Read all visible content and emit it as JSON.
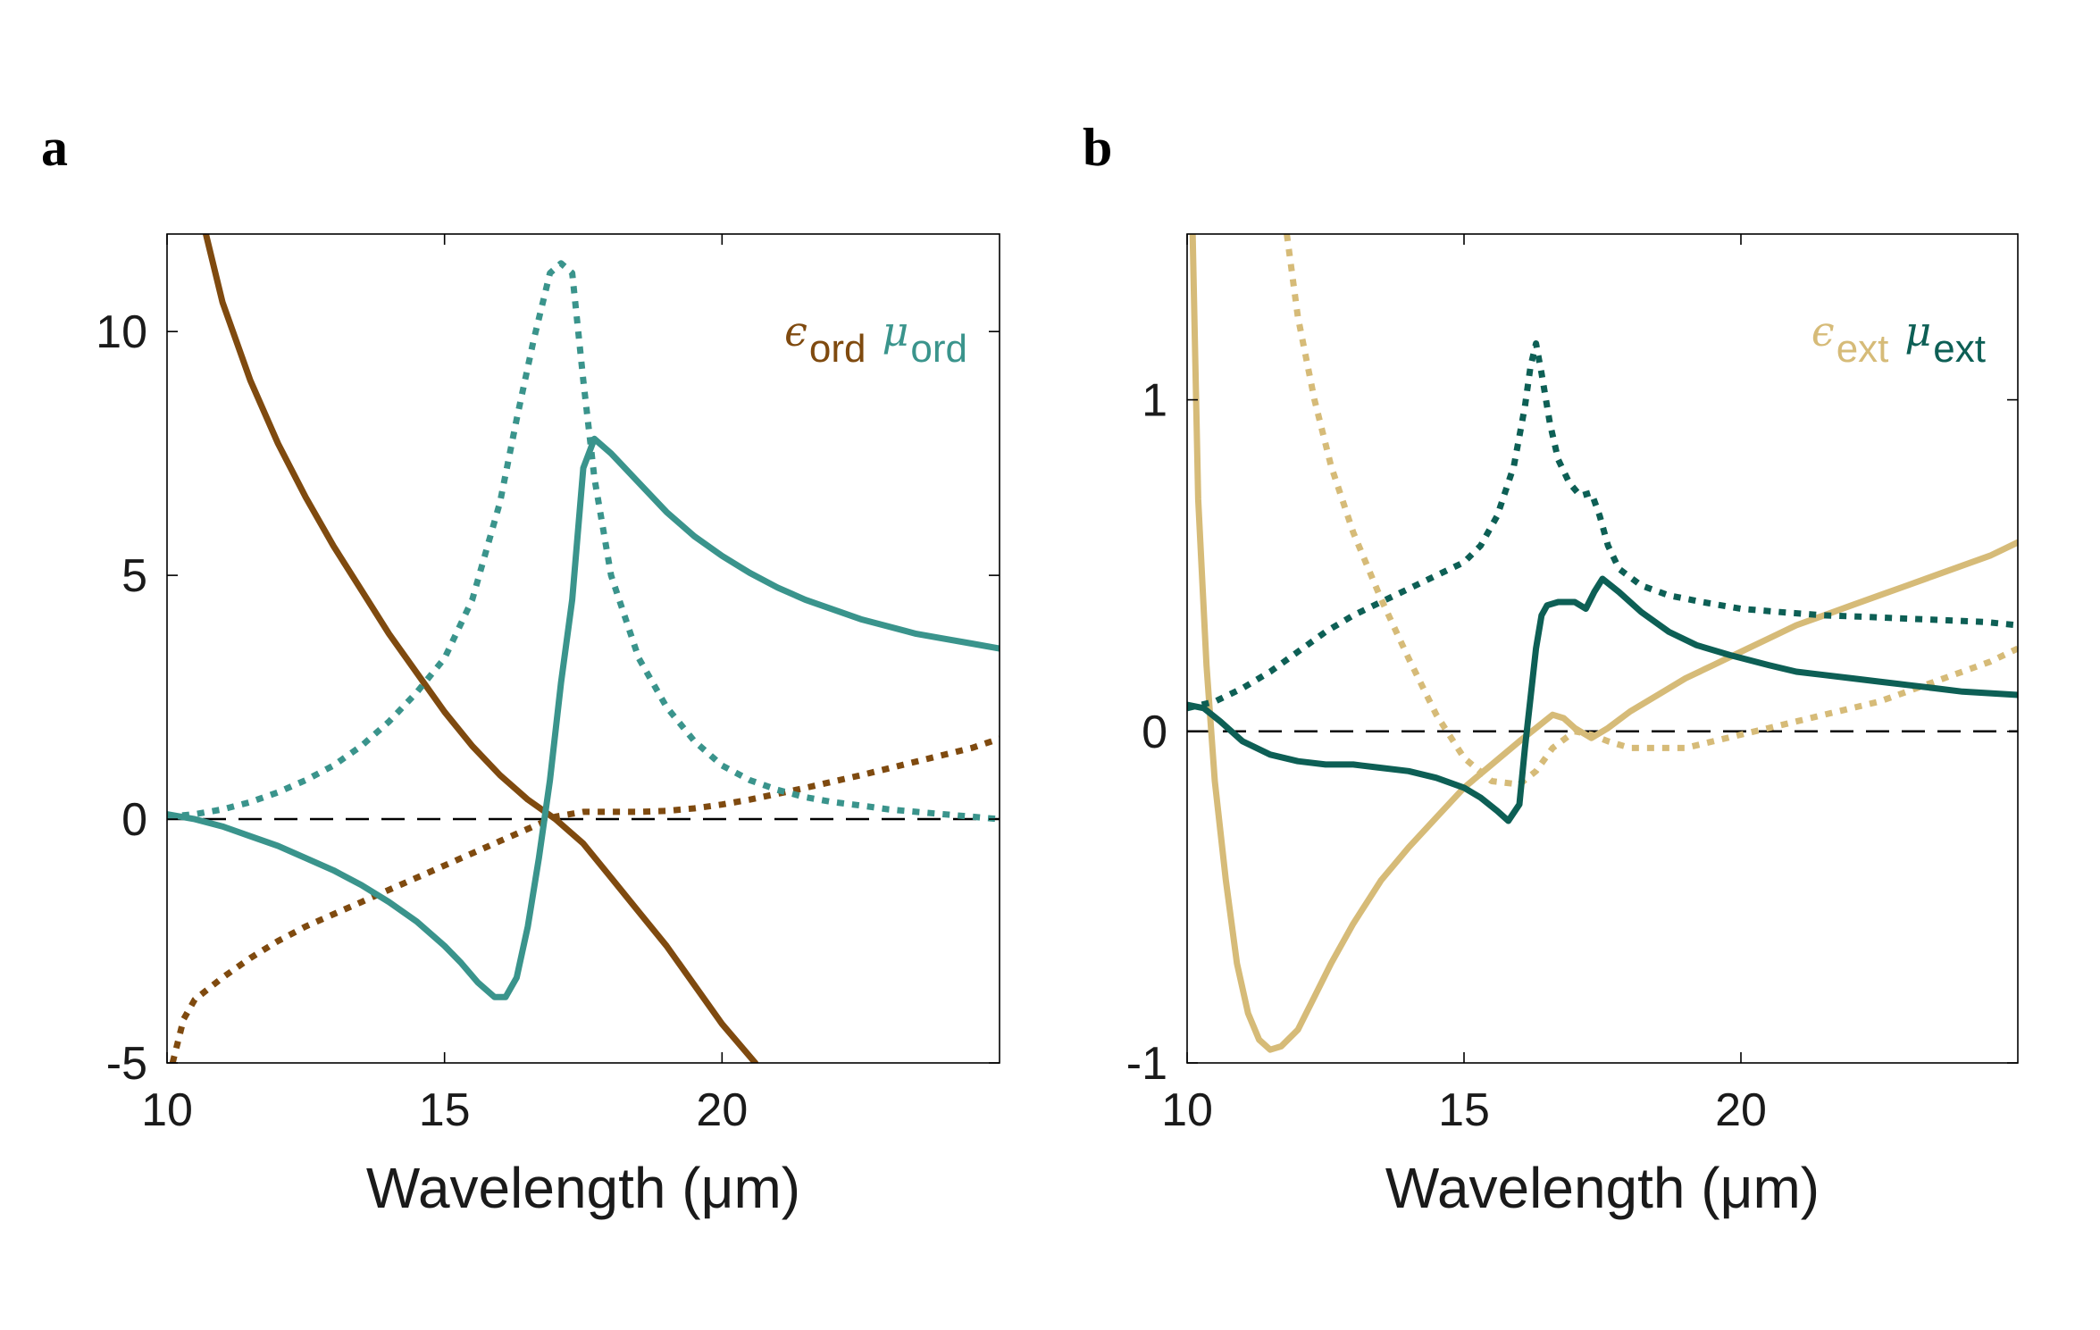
{
  "chart_data": [
    {
      "panel": "a",
      "type": "line",
      "xlabel": "Wavelength (μm)",
      "xlim": [
        10,
        25
      ],
      "ylim": [
        -5,
        12
      ],
      "xticks": [
        10,
        15,
        20
      ],
      "xtick_labels": [
        "10",
        "15",
        "20"
      ],
      "yticks": [
        -5,
        0,
        5,
        10
      ],
      "ytick_labels": [
        "-5",
        "0",
        "5",
        "10"
      ],
      "zero_line": 0,
      "legend": [
        {
          "symbol": "ϵ",
          "sub": "ord",
          "color": "#7f4a0f"
        },
        {
          "symbol": "μ",
          "sub": "ord",
          "color": "#3a948c"
        }
      ],
      "series": [
        {
          "name": "Re ϵ_ord",
          "color": "#7f4a0f",
          "style": "solid",
          "x": [
            10.7,
            11,
            11.5,
            12,
            12.5,
            13,
            13.5,
            14,
            14.5,
            15,
            15.5,
            16,
            16.5,
            17,
            17.5,
            18,
            18.5,
            19,
            19.5,
            20,
            20.6
          ],
          "y": [
            12,
            10.6,
            9.0,
            7.7,
            6.6,
            5.6,
            4.7,
            3.8,
            3.0,
            2.2,
            1.5,
            0.9,
            0.4,
            0.0,
            -0.5,
            -1.2,
            -1.9,
            -2.6,
            -3.4,
            -4.2,
            -5.0
          ]
        },
        {
          "name": "Im ϵ_ord",
          "color": "#7f4a0f",
          "style": "dotted",
          "x": [
            10.1,
            10.3,
            10.5,
            11,
            11.5,
            12,
            12.5,
            13,
            13.5,
            14,
            14.5,
            15,
            15.5,
            16,
            16.5,
            17,
            17.5,
            18,
            18.5,
            19,
            19.5,
            20,
            20.5,
            21,
            21.5,
            22,
            22.5,
            23,
            23.5,
            24,
            24.5,
            25
          ],
          "y": [
            -5.0,
            -4.1,
            -3.7,
            -3.25,
            -2.85,
            -2.5,
            -2.2,
            -1.95,
            -1.7,
            -1.45,
            -1.2,
            -0.95,
            -0.7,
            -0.45,
            -0.2,
            0.05,
            0.15,
            0.15,
            0.15,
            0.17,
            0.22,
            0.3,
            0.4,
            0.52,
            0.64,
            0.77,
            0.9,
            1.04,
            1.18,
            1.32,
            1.46,
            1.65
          ]
        },
        {
          "name": "Re μ_ord",
          "color": "#3a948c",
          "style": "solid",
          "x": [
            10,
            10.5,
            11,
            11.5,
            12,
            12.5,
            13,
            13.5,
            14,
            14.5,
            15,
            15.3,
            15.6,
            15.9,
            16.1,
            16.3,
            16.5,
            16.7,
            16.9,
            17.1,
            17.3,
            17.5,
            17.7,
            18,
            18.5,
            19,
            19.5,
            20,
            20.5,
            21,
            21.5,
            22,
            22.5,
            23,
            23.5,
            24,
            24.5,
            25
          ],
          "y": [
            0.1,
            0.0,
            -0.15,
            -0.35,
            -0.55,
            -0.8,
            -1.05,
            -1.35,
            -1.7,
            -2.1,
            -2.6,
            -2.95,
            -3.35,
            -3.65,
            -3.65,
            -3.25,
            -2.2,
            -0.8,
            0.8,
            2.8,
            4.5,
            7.2,
            7.8,
            7.5,
            6.9,
            6.3,
            5.8,
            5.4,
            5.05,
            4.75,
            4.5,
            4.3,
            4.1,
            3.95,
            3.8,
            3.7,
            3.6,
            3.5
          ]
        },
        {
          "name": "Im μ_ord",
          "color": "#3a948c",
          "style": "dotted",
          "x": [
            10,
            10.5,
            11,
            11.5,
            12,
            12.5,
            13,
            13.5,
            14,
            14.5,
            15,
            15.5,
            16,
            16.3,
            16.6,
            16.9,
            17.1,
            17.3,
            17.5,
            17.7,
            18,
            18.5,
            19,
            19.5,
            20,
            20.5,
            21,
            21.5,
            22,
            22.5,
            23,
            23.5,
            24,
            24.5,
            25
          ],
          "y": [
            0.05,
            0.1,
            0.2,
            0.35,
            0.55,
            0.8,
            1.1,
            1.5,
            2.0,
            2.6,
            3.3,
            4.5,
            6.5,
            8.2,
            9.8,
            11.2,
            11.4,
            11.2,
            9.0,
            7.0,
            5.0,
            3.3,
            2.3,
            1.6,
            1.1,
            0.8,
            0.6,
            0.45,
            0.35,
            0.28,
            0.2,
            0.15,
            0.1,
            0.05,
            0.0
          ]
        }
      ]
    },
    {
      "panel": "b",
      "type": "line",
      "xlabel": "Wavelength (μm)",
      "xlim": [
        10,
        25
      ],
      "ylim": [
        -1,
        1.5
      ],
      "xticks": [
        10,
        15,
        20
      ],
      "xtick_labels": [
        "10",
        "15",
        "20"
      ],
      "yticks": [
        -1,
        0,
        1
      ],
      "ytick_labels": [
        "-1",
        "0",
        "1"
      ],
      "zero_line": 0,
      "legend": [
        {
          "symbol": "ϵ",
          "sub": "ext",
          "color": "#d6bb78"
        },
        {
          "symbol": "μ",
          "sub": "ext",
          "color": "#0d5f55"
        }
      ],
      "series": [
        {
          "name": "Re ϵ_ext",
          "color": "#d6bb78",
          "style": "solid",
          "x": [
            10.1,
            10.2,
            10.35,
            10.5,
            10.7,
            10.9,
            11.1,
            11.3,
            11.5,
            11.7,
            12,
            12.3,
            12.6,
            13,
            13.5,
            14,
            14.5,
            15,
            15.5,
            16,
            16.3,
            16.6,
            16.8,
            17,
            17.3,
            17.6,
            18,
            18.5,
            19,
            19.5,
            20,
            20.5,
            21,
            21.5,
            22,
            22.5,
            23,
            23.5,
            24,
            24.5,
            25
          ],
          "y": [
            1.5,
            0.7,
            0.2,
            -0.15,
            -0.45,
            -0.7,
            -0.85,
            -0.93,
            -0.96,
            -0.95,
            -0.9,
            -0.8,
            -0.7,
            -0.58,
            -0.45,
            -0.35,
            -0.26,
            -0.17,
            -0.1,
            -0.03,
            0.01,
            0.05,
            0.04,
            0.01,
            -0.02,
            0.01,
            0.06,
            0.11,
            0.16,
            0.2,
            0.24,
            0.28,
            0.32,
            0.35,
            0.38,
            0.41,
            0.44,
            0.47,
            0.5,
            0.53,
            0.57
          ]
        },
        {
          "name": "Im ϵ_ext",
          "color": "#d6bb78",
          "style": "dotted",
          "x": [
            11.8,
            12,
            12.3,
            12.6,
            13,
            13.5,
            14,
            14.5,
            15,
            15.5,
            16,
            16.3,
            16.6,
            17,
            17.3,
            17.6,
            18,
            18.5,
            19,
            19.5,
            20,
            20.5,
            21,
            21.5,
            22,
            22.5,
            23,
            23.5,
            24,
            24.5,
            25
          ],
          "y": [
            1.5,
            1.25,
            1.0,
            0.8,
            0.6,
            0.4,
            0.22,
            0.05,
            -0.08,
            -0.15,
            -0.16,
            -0.12,
            -0.05,
            0.0,
            -0.01,
            -0.03,
            -0.05,
            -0.05,
            -0.05,
            -0.03,
            -0.01,
            0.01,
            0.03,
            0.05,
            0.07,
            0.09,
            0.12,
            0.15,
            0.18,
            0.21,
            0.25
          ]
        },
        {
          "name": "Re μ_ext",
          "color": "#0d5f55",
          "style": "solid",
          "x": [
            10,
            10.3,
            10.6,
            11,
            11.5,
            12,
            12.5,
            13,
            13.5,
            14,
            14.5,
            15,
            15.3,
            15.6,
            15.8,
            16,
            16.1,
            16.2,
            16.3,
            16.4,
            16.5,
            16.7,
            17,
            17.2,
            17.35,
            17.5,
            17.8,
            18.2,
            18.7,
            19.2,
            19.8,
            20.5,
            21,
            21.5,
            22,
            22.5,
            23,
            23.5,
            24,
            24.5,
            25
          ],
          "y": [
            0.08,
            0.07,
            0.03,
            -0.03,
            -0.07,
            -0.09,
            -0.1,
            -0.1,
            -0.11,
            -0.12,
            -0.14,
            -0.17,
            -0.2,
            -0.24,
            -0.27,
            -0.22,
            -0.05,
            0.1,
            0.25,
            0.35,
            0.38,
            0.39,
            0.39,
            0.37,
            0.42,
            0.46,
            0.42,
            0.36,
            0.3,
            0.26,
            0.23,
            0.2,
            0.18,
            0.17,
            0.16,
            0.15,
            0.14,
            0.13,
            0.12,
            0.115,
            0.11
          ]
        },
        {
          "name": "Im μ_ext",
          "color": "#0d5f55",
          "style": "dotted",
          "x": [
            10,
            10.5,
            11,
            11.5,
            12,
            12.5,
            13,
            13.5,
            14,
            14.5,
            15,
            15.3,
            15.6,
            15.9,
            16.1,
            16.2,
            16.3,
            16.4,
            16.55,
            16.7,
            16.9,
            17.1,
            17.3,
            17.45,
            17.6,
            17.8,
            18.2,
            18.7,
            19.3,
            20,
            20.7,
            21.5,
            22.3,
            23,
            23.7,
            24.4,
            25
          ],
          "y": [
            0.07,
            0.09,
            0.13,
            0.18,
            0.24,
            0.3,
            0.35,
            0.39,
            0.43,
            0.47,
            0.51,
            0.56,
            0.65,
            0.8,
            0.98,
            1.1,
            1.17,
            1.08,
            0.93,
            0.82,
            0.75,
            0.71,
            0.72,
            0.65,
            0.56,
            0.49,
            0.44,
            0.41,
            0.39,
            0.37,
            0.36,
            0.35,
            0.345,
            0.34,
            0.335,
            0.33,
            0.32
          ]
        }
      ]
    }
  ],
  "panel_labels": {
    "a": "a",
    "b": "b"
  }
}
